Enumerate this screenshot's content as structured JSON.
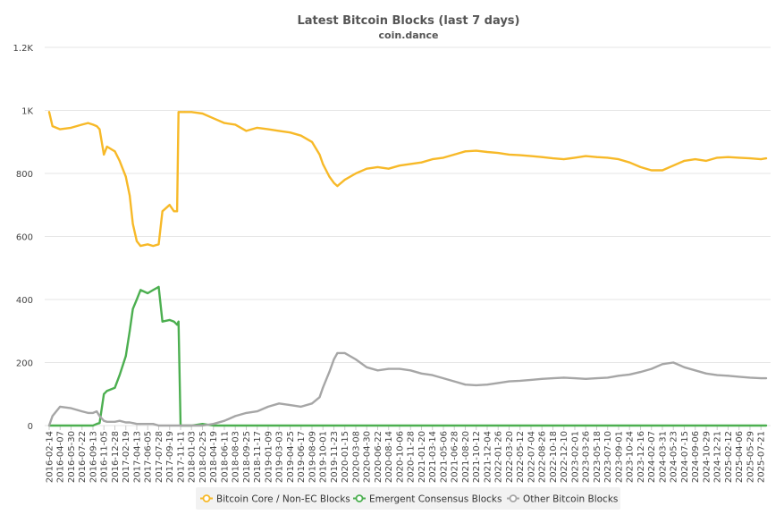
{
  "chart_data": {
    "type": "line",
    "title": "Latest Bitcoin Blocks (last 7 days)",
    "subtitle": "coin.dance",
    "xlabel": "",
    "ylabel": "",
    "ylim": [
      0,
      1200
    ],
    "grid": true,
    "legend_position": "bottom",
    "y_ticks": [
      {
        "value": 0,
        "label": "0"
      },
      {
        "value": 200,
        "label": "200"
      },
      {
        "value": 400,
        "label": "400"
      },
      {
        "value": 600,
        "label": "600"
      },
      {
        "value": 800,
        "label": "800"
      },
      {
        "value": 1000,
        "label": "1K"
      },
      {
        "value": 1200,
        "label": "1.2K"
      }
    ],
    "x_tick_labels": [
      "2016-02-14",
      "2016-04-07",
      "2016-05-30",
      "2016-07-22",
      "2016-09-13",
      "2016-11-05",
      "2016-12-28",
      "2017-02-19",
      "2017-04-13",
      "2017-06-05",
      "2017-07-28",
      "2017-09-19",
      "2017-11-11",
      "2018-01-03",
      "2018-02-25",
      "2018-04-19",
      "2018-06-11",
      "2018-08-03",
      "2018-09-25",
      "2018-11-17",
      "2019-01-09",
      "2019-03-03",
      "2019-04-25",
      "2019-06-17",
      "2019-08-09",
      "2019-10-01",
      "2019-11-23",
      "2020-01-15",
      "2020-03-08",
      "2020-04-30",
      "2020-06-22",
      "2020-08-14",
      "2020-10-06",
      "2020-11-28",
      "2021-01-20",
      "2021-03-14",
      "2021-05-06",
      "2021-06-28",
      "2021-08-20",
      "2021-10-12",
      "2021-12-04",
      "2022-01-26",
      "2022-03-20",
      "2022-05-12",
      "2022-07-04",
      "2022-08-26",
      "2022-10-18",
      "2022-12-10",
      "2023-02-01",
      "2023-03-26",
      "2023-05-18",
      "2023-07-10",
      "2023-09-01",
      "2023-10-24",
      "2023-12-16",
      "2024-02-07",
      "2024-03-31",
      "2024-05-23",
      "2024-07-15",
      "2024-09-06",
      "2024-10-29",
      "2024-12-21",
      "2025-02-12",
      "2025-04-06",
      "2025-05-29",
      "2025-07-21"
    ],
    "x": [
      "2016-02-14",
      "2016-03-01",
      "2016-04-07",
      "2016-05-30",
      "2016-07-22",
      "2016-08-20",
      "2016-09-13",
      "2016-10-01",
      "2016-10-15",
      "2016-11-05",
      "2016-11-20",
      "2016-12-28",
      "2017-01-20",
      "2017-02-19",
      "2017-03-10",
      "2017-03-25",
      "2017-04-13",
      "2017-05-01",
      "2017-06-05",
      "2017-07-01",
      "2017-07-28",
      "2017-08-15",
      "2017-09-19",
      "2017-10-10",
      "2017-10-25",
      "2017-11-01",
      "2017-11-11",
      "2017-12-01",
      "2018-01-03",
      "2018-02-25",
      "2018-04-19",
      "2018-06-11",
      "2018-08-03",
      "2018-09-25",
      "2018-11-17",
      "2019-01-09",
      "2019-03-03",
      "2019-04-25",
      "2019-06-17",
      "2019-08-09",
      "2019-09-15",
      "2019-10-01",
      "2019-11-01",
      "2019-11-23",
      "2019-12-10",
      "2020-01-15",
      "2020-03-08",
      "2020-04-30",
      "2020-06-22",
      "2020-08-14",
      "2020-10-06",
      "2020-11-28",
      "2021-01-20",
      "2021-03-14",
      "2021-05-06",
      "2021-06-28",
      "2021-08-20",
      "2021-10-12",
      "2021-12-04",
      "2022-01-26",
      "2022-03-20",
      "2022-05-12",
      "2022-07-04",
      "2022-08-26",
      "2022-10-18",
      "2022-12-10",
      "2023-02-01",
      "2023-03-26",
      "2023-05-18",
      "2023-07-10",
      "2023-09-01",
      "2023-10-24",
      "2023-12-16",
      "2024-02-07",
      "2024-03-31",
      "2024-05-23",
      "2024-07-15",
      "2024-09-06",
      "2024-10-29",
      "2024-12-21",
      "2025-02-12",
      "2025-04-06",
      "2025-05-29",
      "2025-07-21",
      "2025-08-15"
    ],
    "series": [
      {
        "name": "Bitcoin Core / Non-EC Blocks",
        "color": "#f7b928",
        "values": [
          995,
          950,
          940,
          945,
          955,
          960,
          955,
          950,
          940,
          860,
          885,
          870,
          840,
          790,
          730,
          640,
          585,
          570,
          575,
          570,
          575,
          680,
          700,
          680,
          680,
          995,
          995,
          995,
          995,
          990,
          975,
          960,
          955,
          935,
          945,
          940,
          935,
          930,
          920,
          900,
          860,
          830,
          790,
          770,
          760,
          780,
          800,
          815,
          820,
          815,
          825,
          830,
          835,
          845,
          850,
          860,
          870,
          872,
          868,
          865,
          860,
          858,
          855,
          852,
          848,
          845,
          850,
          855,
          852,
          850,
          845,
          835,
          820,
          810,
          810,
          825,
          840,
          845,
          840,
          850,
          852,
          850,
          848,
          845,
          848
        ]
      },
      {
        "name": "Emergent Consensus Blocks",
        "color": "#4caf50",
        "values": [
          0,
          0,
          0,
          0,
          0,
          0,
          0,
          5,
          8,
          100,
          110,
          120,
          160,
          220,
          300,
          370,
          400,
          430,
          420,
          430,
          440,
          330,
          335,
          330,
          320,
          330,
          0,
          0,
          0,
          5,
          0,
          0,
          0,
          0,
          0,
          0,
          0,
          0,
          0,
          0,
          0,
          0,
          0,
          0,
          0,
          0,
          0,
          0,
          0,
          0,
          0,
          0,
          0,
          0,
          0,
          0,
          0,
          0,
          0,
          0,
          0,
          0,
          0,
          0,
          0,
          0,
          0,
          0,
          0,
          0,
          0,
          0,
          0,
          0,
          0,
          0,
          0,
          0,
          0,
          0,
          0,
          0,
          0,
          0,
          0
        ]
      },
      {
        "name": "Other Bitcoin Blocks",
        "color": "#a6a6a6",
        "values": [
          0,
          30,
          60,
          55,
          45,
          40,
          40,
          45,
          30,
          15,
          12,
          12,
          15,
          10,
          10,
          8,
          5,
          5,
          5,
          5,
          0,
          0,
          0,
          0,
          0,
          0,
          0,
          0,
          0,
          0,
          5,
          15,
          30,
          40,
          45,
          60,
          70,
          65,
          60,
          70,
          90,
          120,
          170,
          210,
          230,
          230,
          210,
          185,
          175,
          180,
          180,
          175,
          165,
          160,
          150,
          140,
          130,
          128,
          130,
          135,
          140,
          142,
          145,
          148,
          150,
          152,
          150,
          148,
          150,
          152,
          158,
          162,
          170,
          180,
          195,
          200,
          185,
          175,
          165,
          160,
          158,
          155,
          152,
          150,
          150
        ]
      }
    ]
  }
}
